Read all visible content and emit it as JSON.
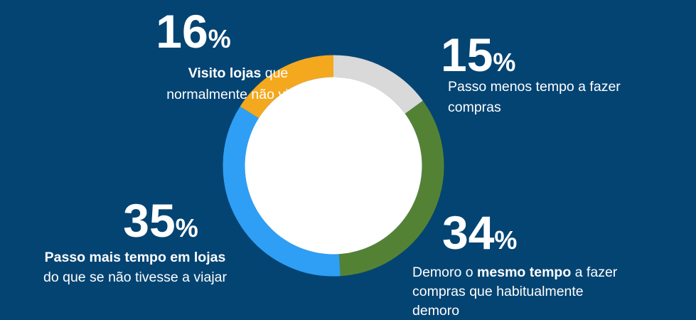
{
  "chart_data": {
    "type": "donut",
    "categories": [
      [
        [
          {
            "text": "Passo menos tempo a fazer",
            "bold": false
          }
        ],
        [
          {
            "text": "compras",
            "bold": false
          }
        ]
      ],
      [
        [
          {
            "text": "Demoro o ",
            "bold": false
          },
          {
            "text": "mesmo tempo",
            "bold": true
          },
          {
            "text": " a fazer",
            "bold": false
          }
        ],
        [
          {
            "text": "compras que habitualmente",
            "bold": false
          }
        ],
        [
          {
            "text": "demoro",
            "bold": false
          }
        ]
      ],
      [
        [
          {
            "text": "Passo mais tempo em lojas",
            "bold": true
          }
        ],
        [
          {
            "text": "do que se não tivesse a viajar",
            "bold": false
          }
        ]
      ],
      [
        [
          {
            "text": "Visito lojas",
            "bold": true
          },
          {
            "text": " que",
            "bold": false
          }
        ],
        [
          {
            "text": "normalmente não visito",
            "bold": false
          }
        ]
      ]
    ],
    "values": [
      15,
      34,
      35,
      16
    ],
    "value_unit": "%",
    "colors": [
      "#d9d9d9",
      "#548235",
      "#2e9ff5",
      "#f4a81d"
    ]
  }
}
